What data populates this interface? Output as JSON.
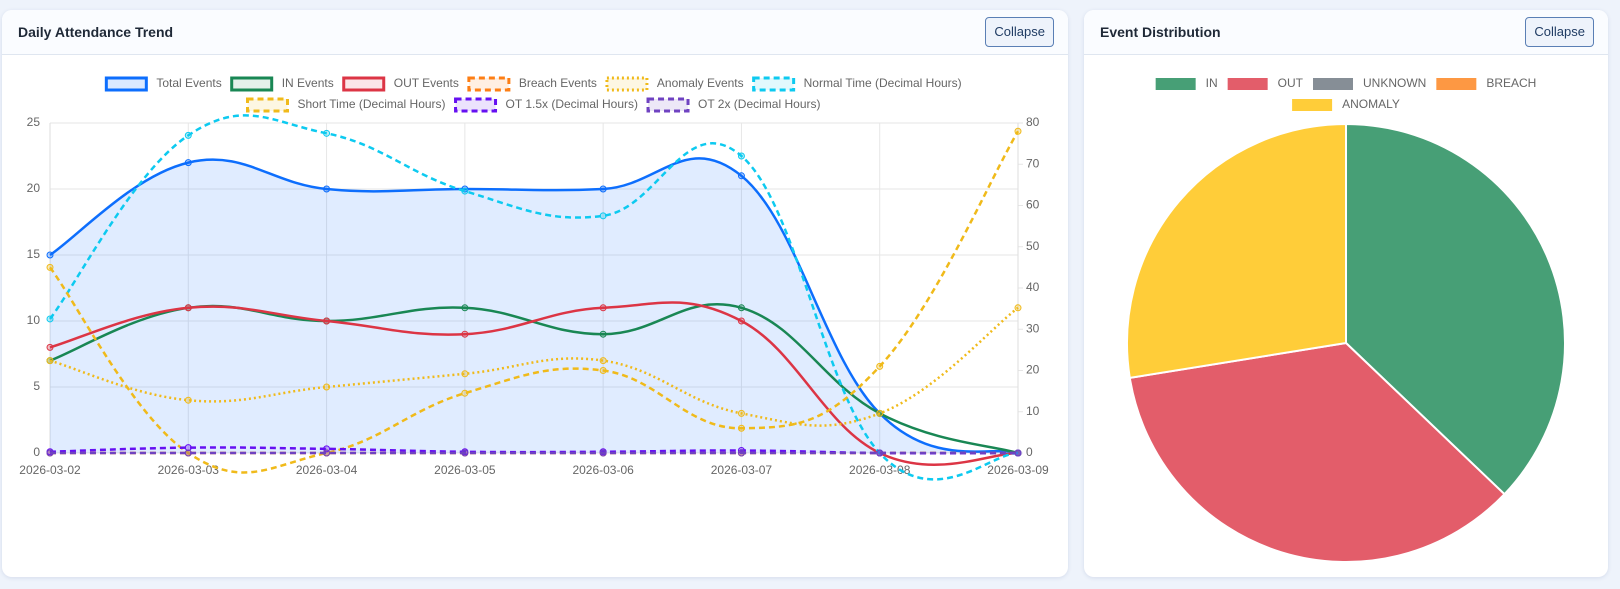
{
  "chart_data": [
    {
      "type": "line",
      "title": "Daily Attendance Trend",
      "categories": [
        "2026-03-02",
        "2026-03-03",
        "2026-03-04",
        "2026-03-05",
        "2026-03-06",
        "2026-03-07",
        "2026-03-08",
        "2026-03-09"
      ],
      "series": [
        {
          "name": "Total Events",
          "color": "#0d6efd",
          "style": "solid",
          "fill": true,
          "values": [
            15,
            22,
            20,
            20,
            20,
            21,
            3,
            0
          ]
        },
        {
          "name": "IN Events",
          "color": "#198754",
          "style": "solid",
          "values": [
            7,
            11,
            10,
            11,
            9,
            11,
            3,
            0
          ]
        },
        {
          "name": "OUT Events",
          "color": "#dc3545",
          "style": "solid",
          "values": [
            8,
            11,
            10,
            9,
            11,
            10,
            0,
            0
          ]
        },
        {
          "name": "Breach Events",
          "color": "#fd7e14",
          "style": "dashed",
          "values": [
            0,
            0,
            0,
            0,
            0,
            0,
            0,
            0
          ]
        },
        {
          "name": "Anomaly Events",
          "color": "#f0ba1a",
          "style": "dotted",
          "values": [
            7,
            4,
            5,
            6,
            7,
            3,
            3,
            11
          ]
        },
        {
          "name": "Normal Time (Decimal Hours)",
          "color": "#0dcaf0",
          "style": "dashed",
          "axis": "y2",
          "values": [
            32.5,
            77,
            77.5,
            63.5,
            57.5,
            72,
            0,
            0
          ]
        },
        {
          "name": "Short Time (Decimal Hours)",
          "color": "#f0ba1a",
          "style": "dashed",
          "axis": "y2",
          "values": [
            45,
            0,
            0,
            14.5,
            20,
            6,
            21,
            78
          ]
        },
        {
          "name": "OT 1.5x (Decimal Hours)",
          "color": "#6610f2",
          "style": "dashed",
          "axis": "y2",
          "values": [
            0.3,
            1.3,
            1,
            0.3,
            0.3,
            0.6,
            0,
            0
          ]
        },
        {
          "name": "OT 2x (Decimal Hours)",
          "color": "#6f42c1",
          "style": "dashed",
          "axis": "y2",
          "values": [
            0,
            0,
            0,
            0,
            0,
            0,
            0,
            0
          ]
        }
      ],
      "ylim": [
        0,
        25
      ],
      "yticks": [
        0,
        5,
        10,
        15,
        20,
        25
      ],
      "y2lim": [
        0,
        80
      ],
      "y2ticks": [
        0,
        10,
        20,
        30,
        40,
        50,
        60,
        70,
        80
      ],
      "grid": true,
      "legend": "top"
    },
    {
      "type": "pie",
      "title": "Event Distribution",
      "categories": [
        "IN",
        "OUT",
        "UNKNOWN",
        "BREACH",
        "ANOMALY"
      ],
      "values": [
        62,
        59,
        0,
        0,
        46
      ],
      "colors": [
        "#479f76",
        "#e35d6a",
        "#868e96",
        "#fd9843",
        "#ffcd39"
      ],
      "legend": "top"
    }
  ],
  "buttons": [
    "Collapse",
    "Collapse"
  ]
}
